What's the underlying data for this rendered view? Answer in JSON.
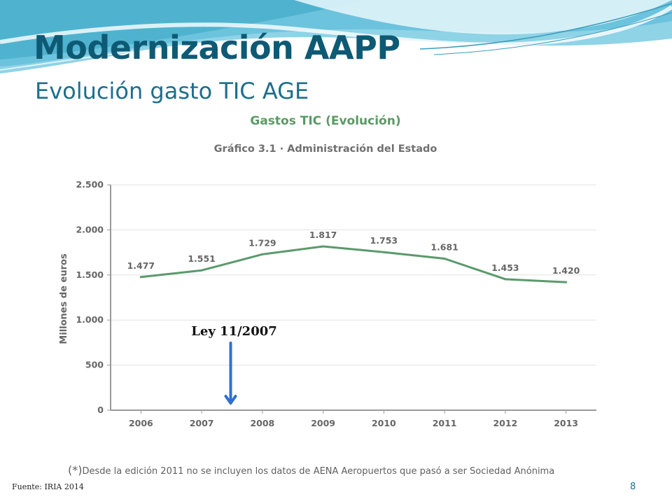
{
  "slide": {
    "title": "Modernización AAPP",
    "subtitle": "Evolución gasto TIC AGE",
    "source": "Fuente: IRIA 2014",
    "page_number": "8",
    "colors": {
      "title": "#0e5a74",
      "subtitle": "#1d6f8c",
      "wave": "#4fb3cf"
    }
  },
  "chart_data": {
    "type": "line",
    "title": "Gastos TIC (Evolución)",
    "subtitle": "Gráfico 3.1 · Administración del Estado",
    "ylabel": "Millones de euros",
    "xlabel": "",
    "categories": [
      "2006",
      "2007",
      "2008",
      "2009",
      "2010",
      "2011",
      "2012",
      "2013"
    ],
    "series": [
      {
        "values": [
          1477,
          1551,
          1729,
          1817,
          1753,
          1681,
          1453,
          1420
        ],
        "labels": [
          "1.477",
          "1.551",
          "1.729",
          "1.817",
          "1.753",
          "1.681",
          "1.453",
          "1.420"
        ],
        "color": "#5a9a6c"
      }
    ],
    "ylim": [
      0,
      2500
    ],
    "yticks": [
      0,
      500,
      1000,
      1500,
      2000,
      2500
    ],
    "ytick_labels": [
      "0",
      "500",
      "1.000",
      "1.500",
      "2.000",
      "2.500"
    ],
    "grid": true,
    "note": {
      "prefix": "(*)",
      "text": "Desde la edición 2011 no se incluyen los datos de AENA Aeropuertos que pasó a ser Sociedad Anónima"
    },
    "annotation": {
      "text": "Ley 11/2007",
      "x": "2007.5",
      "arrow_color": "#2f6fd0"
    }
  }
}
